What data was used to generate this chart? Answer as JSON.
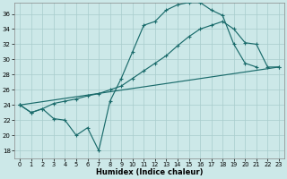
{
  "bg_color": "#cce8e8",
  "grid_color": "#a8cccc",
  "line_color": "#1a6b6b",
  "xlabel": "Humidex (Indice chaleur)",
  "xlim": [
    -0.5,
    23.5
  ],
  "ylim": [
    17.0,
    37.5
  ],
  "yticks": [
    18,
    20,
    22,
    24,
    26,
    28,
    30,
    32,
    34,
    36
  ],
  "xticks": [
    0,
    1,
    2,
    3,
    4,
    5,
    6,
    7,
    8,
    9,
    10,
    11,
    12,
    13,
    14,
    15,
    16,
    17,
    18,
    19,
    20,
    21,
    22,
    23
  ],
  "line1_x": [
    0,
    1,
    2,
    3,
    4,
    5,
    6,
    7,
    8,
    9,
    10,
    11,
    12,
    13,
    14,
    15,
    16,
    17,
    18,
    19,
    20,
    21
  ],
  "line1_y": [
    24,
    23,
    23.5,
    22.2,
    22,
    20,
    21,
    18,
    24.5,
    27.5,
    31,
    34.5,
    35,
    36.5,
    37.2,
    37.5,
    37.5,
    36.5,
    35.8,
    32,
    29.5,
    29
  ],
  "line2_x": [
    0,
    1,
    2,
    3,
    4,
    5,
    6,
    7,
    8,
    9,
    10,
    11,
    12,
    13,
    14,
    15,
    16,
    17,
    18,
    19,
    20,
    21,
    22,
    23
  ],
  "line2_y": [
    24,
    23,
    23.5,
    24.2,
    24.5,
    24.8,
    25.2,
    25.5,
    26,
    26.5,
    27.5,
    28.5,
    29.5,
    30.5,
    31.8,
    33,
    34,
    34.5,
    35,
    34,
    32.2,
    32,
    29,
    29
  ],
  "line3_x": [
    0,
    23
  ],
  "line3_y": [
    24,
    29
  ]
}
